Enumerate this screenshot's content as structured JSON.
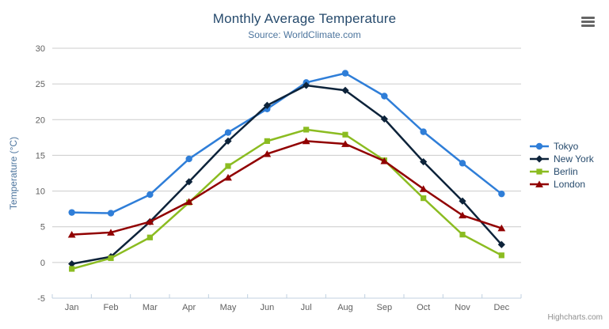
{
  "header": {
    "title": "Monthly Average Temperature",
    "subtitle": "Source: WorldClimate.com"
  },
  "credits": "Highcharts.com",
  "colors": {
    "title": "#274b6d",
    "subtitle": "#4d759e",
    "axis_title": "#4d759e",
    "tick_label": "#606060",
    "grid": "#cccccc",
    "axis_line": "#c0d0e0",
    "legend_text": "#274b6d",
    "credits": "#909090",
    "menu_icon": "#666666"
  },
  "chart_data": {
    "type": "line",
    "title": "Monthly Average Temperature",
    "subtitle": "Source: WorldClimate.com",
    "xlabel": "",
    "ylabel": "Temperature (°C)",
    "ylim": [
      -5,
      30
    ],
    "yticks": [
      -5,
      0,
      5,
      10,
      15,
      20,
      25,
      30
    ],
    "grid": true,
    "legend_position": "right",
    "categories": [
      "Jan",
      "Feb",
      "Mar",
      "Apr",
      "May",
      "Jun",
      "Jul",
      "Aug",
      "Sep",
      "Oct",
      "Nov",
      "Dec"
    ],
    "series": [
      {
        "name": "Tokyo",
        "color": "#2f7ed8",
        "marker": "circle",
        "values": [
          7.0,
          6.9,
          9.5,
          14.5,
          18.2,
          21.5,
          25.2,
          26.5,
          23.3,
          18.3,
          13.9,
          9.6
        ]
      },
      {
        "name": "New York",
        "color": "#0d233a",
        "marker": "diamond",
        "values": [
          -0.2,
          0.8,
          5.7,
          11.3,
          17.0,
          22.0,
          24.8,
          24.1,
          20.1,
          14.1,
          8.6,
          2.5
        ]
      },
      {
        "name": "Berlin",
        "color": "#8bbc21",
        "marker": "square",
        "values": [
          -0.9,
          0.6,
          3.5,
          8.4,
          13.5,
          17.0,
          18.6,
          17.9,
          14.3,
          9.0,
          3.9,
          1.0
        ]
      },
      {
        "name": "London",
        "color": "#910000",
        "marker": "triangle",
        "values": [
          3.9,
          4.2,
          5.7,
          8.5,
          11.9,
          15.2,
          17.0,
          16.6,
          14.2,
          10.3,
          6.6,
          4.8
        ]
      }
    ]
  }
}
